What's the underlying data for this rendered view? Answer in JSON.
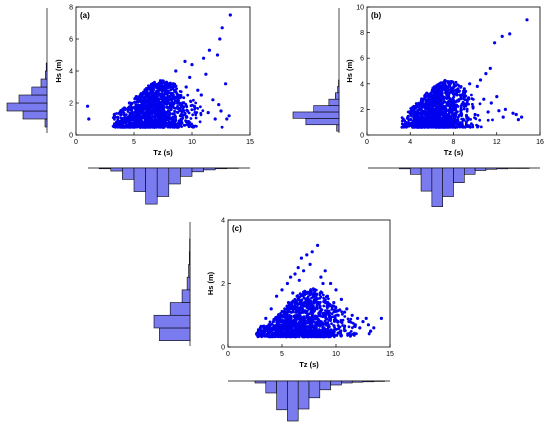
{
  "chart_data": [
    {
      "type": "scatter",
      "panel_label": "(a)",
      "xlabel": "Tz (s)",
      "ylabel": "Hs (m)",
      "xlim": [
        0,
        15
      ],
      "ylim": [
        0,
        8
      ],
      "xticks": [
        "0",
        "5",
        "10",
        "15"
      ],
      "yticks": [
        "0",
        "2",
        "4",
        "6",
        "8"
      ],
      "color": "#0000ee",
      "grid": false,
      "series": [
        {
          "x": [
            1.0,
            1.1,
            13.3,
            12.6,
            12.4,
            11.5,
            12.2,
            11.0,
            9.4,
            10.0,
            8.6,
            12.9,
            13.2,
            12.0,
            9.8,
            11.2,
            7.8,
            6.8,
            6.0,
            5.2,
            4.6,
            4.0,
            3.5,
            9.0,
            10.5,
            11.8,
            12.5,
            13.0,
            7.0,
            8.0,
            5.5,
            6.5,
            7.5,
            8.5,
            9.5,
            10.8,
            4.2,
            3.8,
            5.0,
            6.2,
            7.2,
            8.2,
            9.2,
            10.2,
            11.4,
            12.3,
            4.8,
            5.8,
            6.6,
            7.6
          ],
          "y": [
            1.8,
            1.0,
            7.5,
            6.7,
            6.0,
            5.3,
            5.0,
            4.8,
            4.6,
            4.4,
            4.0,
            3.2,
            1.2,
            1.0,
            3.6,
            3.8,
            3.3,
            3.0,
            2.7,
            2.4,
            2.0,
            1.5,
            0.8,
            1.2,
            2.8,
            2.2,
            1.5,
            1.0,
            1.8,
            2.2,
            1.2,
            1.5,
            2.4,
            2.8,
            3.0,
            2.5,
            0.9,
            0.7,
            1.0,
            0.9,
            1.3,
            1.6,
            2.0,
            1.8,
            1.4,
            1.9,
            1.6,
            2.0,
            2.1,
            1.1
          ]
        }
      ],
      "hist_x_counts": [
        0.02,
        0.08,
        0.3,
        0.62,
        0.95,
        0.75,
        0.42,
        0.22,
        0.1,
        0.05,
        0.02,
        0.01
      ],
      "hist_x_range": [
        2,
        14
      ],
      "hist_y_counts": [
        0.05,
        0.6,
        1.0,
        0.7,
        0.38,
        0.15,
        0.04,
        0.02
      ],
      "hist_y_range": [
        0.5,
        4.5
      ]
    },
    {
      "type": "scatter",
      "panel_label": "(b)",
      "xlabel": "Tz (s)",
      "ylabel": "Hs (m)",
      "xlim": [
        0,
        16
      ],
      "ylim": [
        0,
        10
      ],
      "xticks": [
        "0",
        "4",
        "8",
        "12",
        "16"
      ],
      "yticks": [
        "0",
        "2",
        "4",
        "6",
        "8",
        "10"
      ],
      "color": "#0000ee",
      "grid": false,
      "series": [
        {
          "x": [
            14.8,
            13.2,
            12.5,
            11.8,
            11.4,
            11.0,
            10.5,
            10.2,
            12.0,
            13.5,
            14.3,
            9.5,
            9.0,
            8.5,
            8.0,
            7.5,
            7.0,
            6.5,
            6.0,
            5.5,
            5.0,
            4.5,
            4.0,
            3.5,
            10.8,
            12.8,
            13.8,
            9.8,
            8.8,
            7.8,
            6.8,
            5.8,
            4.8,
            11.5,
            12.2,
            3.8,
            4.2,
            5.2,
            6.2,
            7.2,
            8.2,
            9.2,
            10.0,
            11.2,
            12.6,
            14.0,
            6.4,
            7.4,
            8.4,
            9.4
          ],
          "y": [
            9.0,
            7.9,
            7.7,
            7.2,
            5.2,
            4.8,
            4.3,
            3.8,
            3.0,
            1.7,
            1.4,
            4.0,
            3.6,
            3.4,
            3.2,
            3.1,
            3.0,
            2.8,
            2.6,
            2.2,
            2.0,
            1.6,
            1.2,
            0.8,
            2.8,
            2.0,
            1.6,
            2.2,
            2.4,
            2.0,
            1.8,
            1.4,
            1.1,
            2.5,
            1.9,
            0.7,
            0.9,
            1.2,
            1.0,
            1.3,
            1.7,
            1.5,
            1.6,
            1.8,
            1.4,
            1.2,
            2.0,
            2.5,
            2.7,
            2.9
          ]
        }
      ],
      "hist_x_counts": [
        0.02,
        0.15,
        0.55,
        0.92,
        0.68,
        0.35,
        0.15,
        0.06,
        0.03,
        0.02,
        0.01,
        0.01
      ],
      "hist_x_range": [
        3,
        15
      ],
      "hist_y_counts": [
        0.05,
        0.72,
        1.0,
        0.55,
        0.22,
        0.08,
        0.03,
        0.01
      ],
      "hist_y_range": [
        0.3,
        4.3
      ]
    },
    {
      "type": "scatter",
      "panel_label": "(c)",
      "xlabel": "Tz (s)",
      "ylabel": "Hs (m)",
      "xlim": [
        0,
        15
      ],
      "ylim": [
        0,
        4
      ],
      "xticks": [
        "0",
        "5",
        "10",
        "15"
      ],
      "yticks": [
        "0",
        "2",
        "4"
      ],
      "color": "#0000ee",
      "grid": false,
      "series": [
        {
          "x": [
            8.3,
            7.8,
            7.3,
            6.8,
            6.5,
            6.2,
            5.8,
            5.5,
            5.0,
            4.5,
            4.0,
            3.5,
            3.0,
            2.8,
            9.0,
            9.5,
            10.0,
            10.5,
            11.0,
            11.5,
            12.0,
            12.5,
            13.0,
            13.5,
            14.2,
            8.8,
            7.0,
            6.0,
            9.8,
            10.8,
            11.8,
            12.8,
            4.2,
            5.2,
            3.2,
            7.6,
            8.6,
            9.2,
            6.6,
            5.6,
            13.2,
            12.2,
            11.2,
            10.2,
            4.8,
            3.6,
            7.2,
            8.0,
            9.6,
            6.4
          ],
          "y": [
            3.2,
            3.0,
            2.9,
            2.8,
            2.5,
            2.3,
            2.2,
            2.0,
            1.8,
            1.6,
            1.2,
            0.9,
            0.6,
            0.4,
            2.4,
            2.0,
            1.8,
            1.5,
            1.2,
            1.0,
            0.9,
            0.8,
            0.7,
            0.6,
            0.9,
            2.0,
            2.4,
            1.7,
            1.4,
            1.1,
            0.7,
            0.9,
            0.8,
            1.1,
            0.5,
            2.6,
            2.2,
            1.6,
            2.1,
            1.4,
            0.5,
            0.6,
            0.8,
            1.0,
            0.7,
            0.4,
            1.5,
            1.8,
            1.3,
            1.6
          ]
        }
      ],
      "hist_x_counts": [
        0.05,
        0.3,
        0.72,
        1.0,
        0.7,
        0.42,
        0.22,
        0.1,
        0.05,
        0.03,
        0.02,
        0.01
      ],
      "hist_x_range": [
        2.5,
        14.5
      ],
      "hist_y_counts": [
        0.85,
        1.0,
        0.55,
        0.22,
        0.08,
        0.04,
        0.02,
        0.01
      ],
      "hist_y_range": [
        0.2,
        3.4
      ]
    }
  ]
}
